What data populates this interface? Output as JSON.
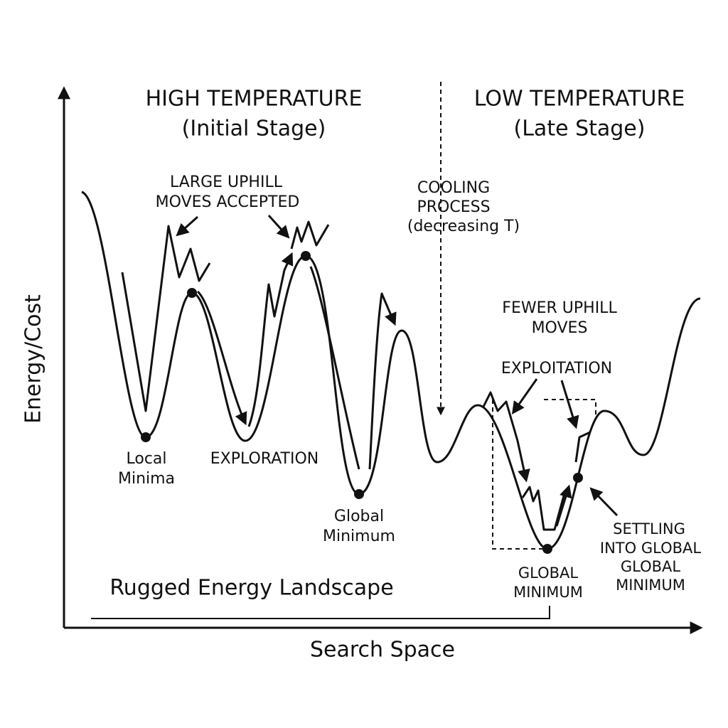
{
  "axes": {
    "y_label": "Energy/Cost",
    "x_label": "Search Space"
  },
  "stages": {
    "high": {
      "title": "HIGH TEMPERATURE",
      "subtitle": "(Initial Stage)"
    },
    "low": {
      "title": "LOW TEMPERATURE",
      "subtitle": "(Late Stage)"
    }
  },
  "annotations": {
    "large_uphill": [
      "LARGE UPHILL",
      "MOVES ACCEPTED"
    ],
    "cooling": [
      "COOLING",
      "PROCESS",
      "(decreasing T)"
    ],
    "fewer_uphill": [
      "FEWER UPHILL",
      "MOVES"
    ],
    "exploitation": "EXPLOITATION",
    "local_minima": [
      "Local",
      "Minima"
    ],
    "exploration": "EXPLORATION",
    "global_minimum_early": [
      "Global",
      "Minimum"
    ],
    "landscape": "Rugged Energy Landscape",
    "global_minimum_late": [
      "GLOBAL",
      "MINIMUM"
    ],
    "settling": [
      "SETTLING",
      "INTO GLOBAL",
      "GLOBAL",
      "MINIMUM"
    ]
  }
}
